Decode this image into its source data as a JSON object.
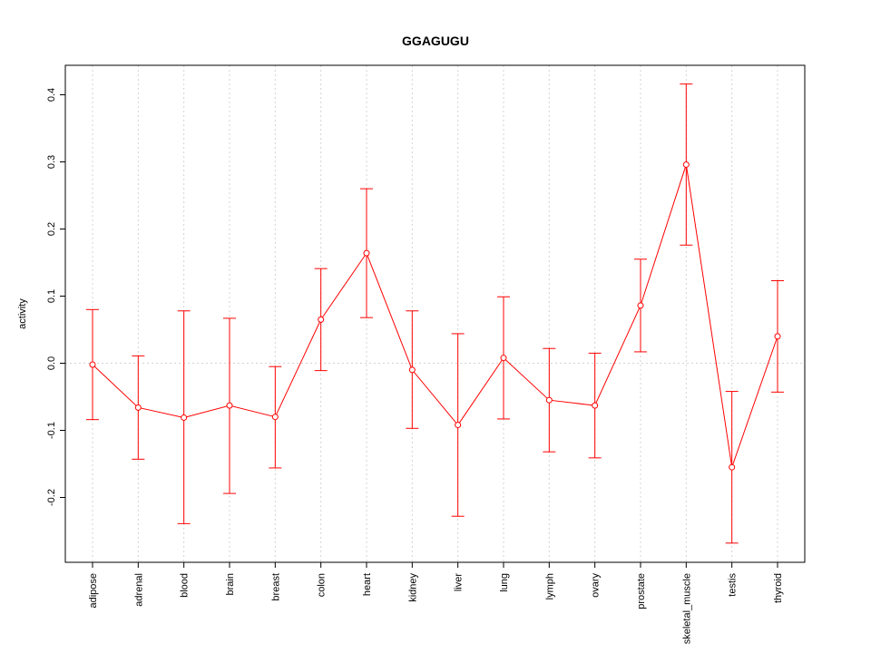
{
  "chart_data": {
    "type": "line",
    "title": "GGAGUGU",
    "xlabel": "",
    "ylabel": "activity",
    "ylim": [
      -0.295,
      0.44
    ],
    "yticks": [
      "-0.2",
      "-0.1",
      "0.0",
      "0.1",
      "0.2",
      "0.3",
      "0.4"
    ],
    "ytick_values": [
      -0.2,
      -0.1,
      0.0,
      0.1,
      0.2,
      0.3,
      0.4
    ],
    "grid": true,
    "color": "#ff0000",
    "categories": [
      "adipose",
      "adrenal",
      "blood",
      "brain",
      "breast",
      "colon",
      "heart",
      "kidney",
      "liver",
      "lung",
      "lymph",
      "ovary",
      "prostate",
      "skeletal_muscle",
      "testis",
      "thyroid"
    ],
    "values": [
      -0.002,
      -0.066,
      -0.081,
      -0.063,
      -0.08,
      0.065,
      0.164,
      -0.01,
      -0.092,
      0.008,
      -0.055,
      -0.063,
      0.086,
      0.296,
      -0.155,
      0.04
    ],
    "error_low": [
      -0.084,
      -0.143,
      -0.239,
      -0.194,
      -0.156,
      -0.011,
      0.068,
      -0.097,
      -0.228,
      -0.083,
      -0.132,
      -0.141,
      0.017,
      0.176,
      -0.268,
      -0.043
    ],
    "error_high": [
      0.08,
      0.011,
      0.078,
      0.067,
      -0.005,
      0.141,
      0.26,
      0.078,
      0.044,
      0.099,
      0.022,
      0.015,
      0.155,
      0.416,
      -0.042,
      0.123
    ]
  }
}
